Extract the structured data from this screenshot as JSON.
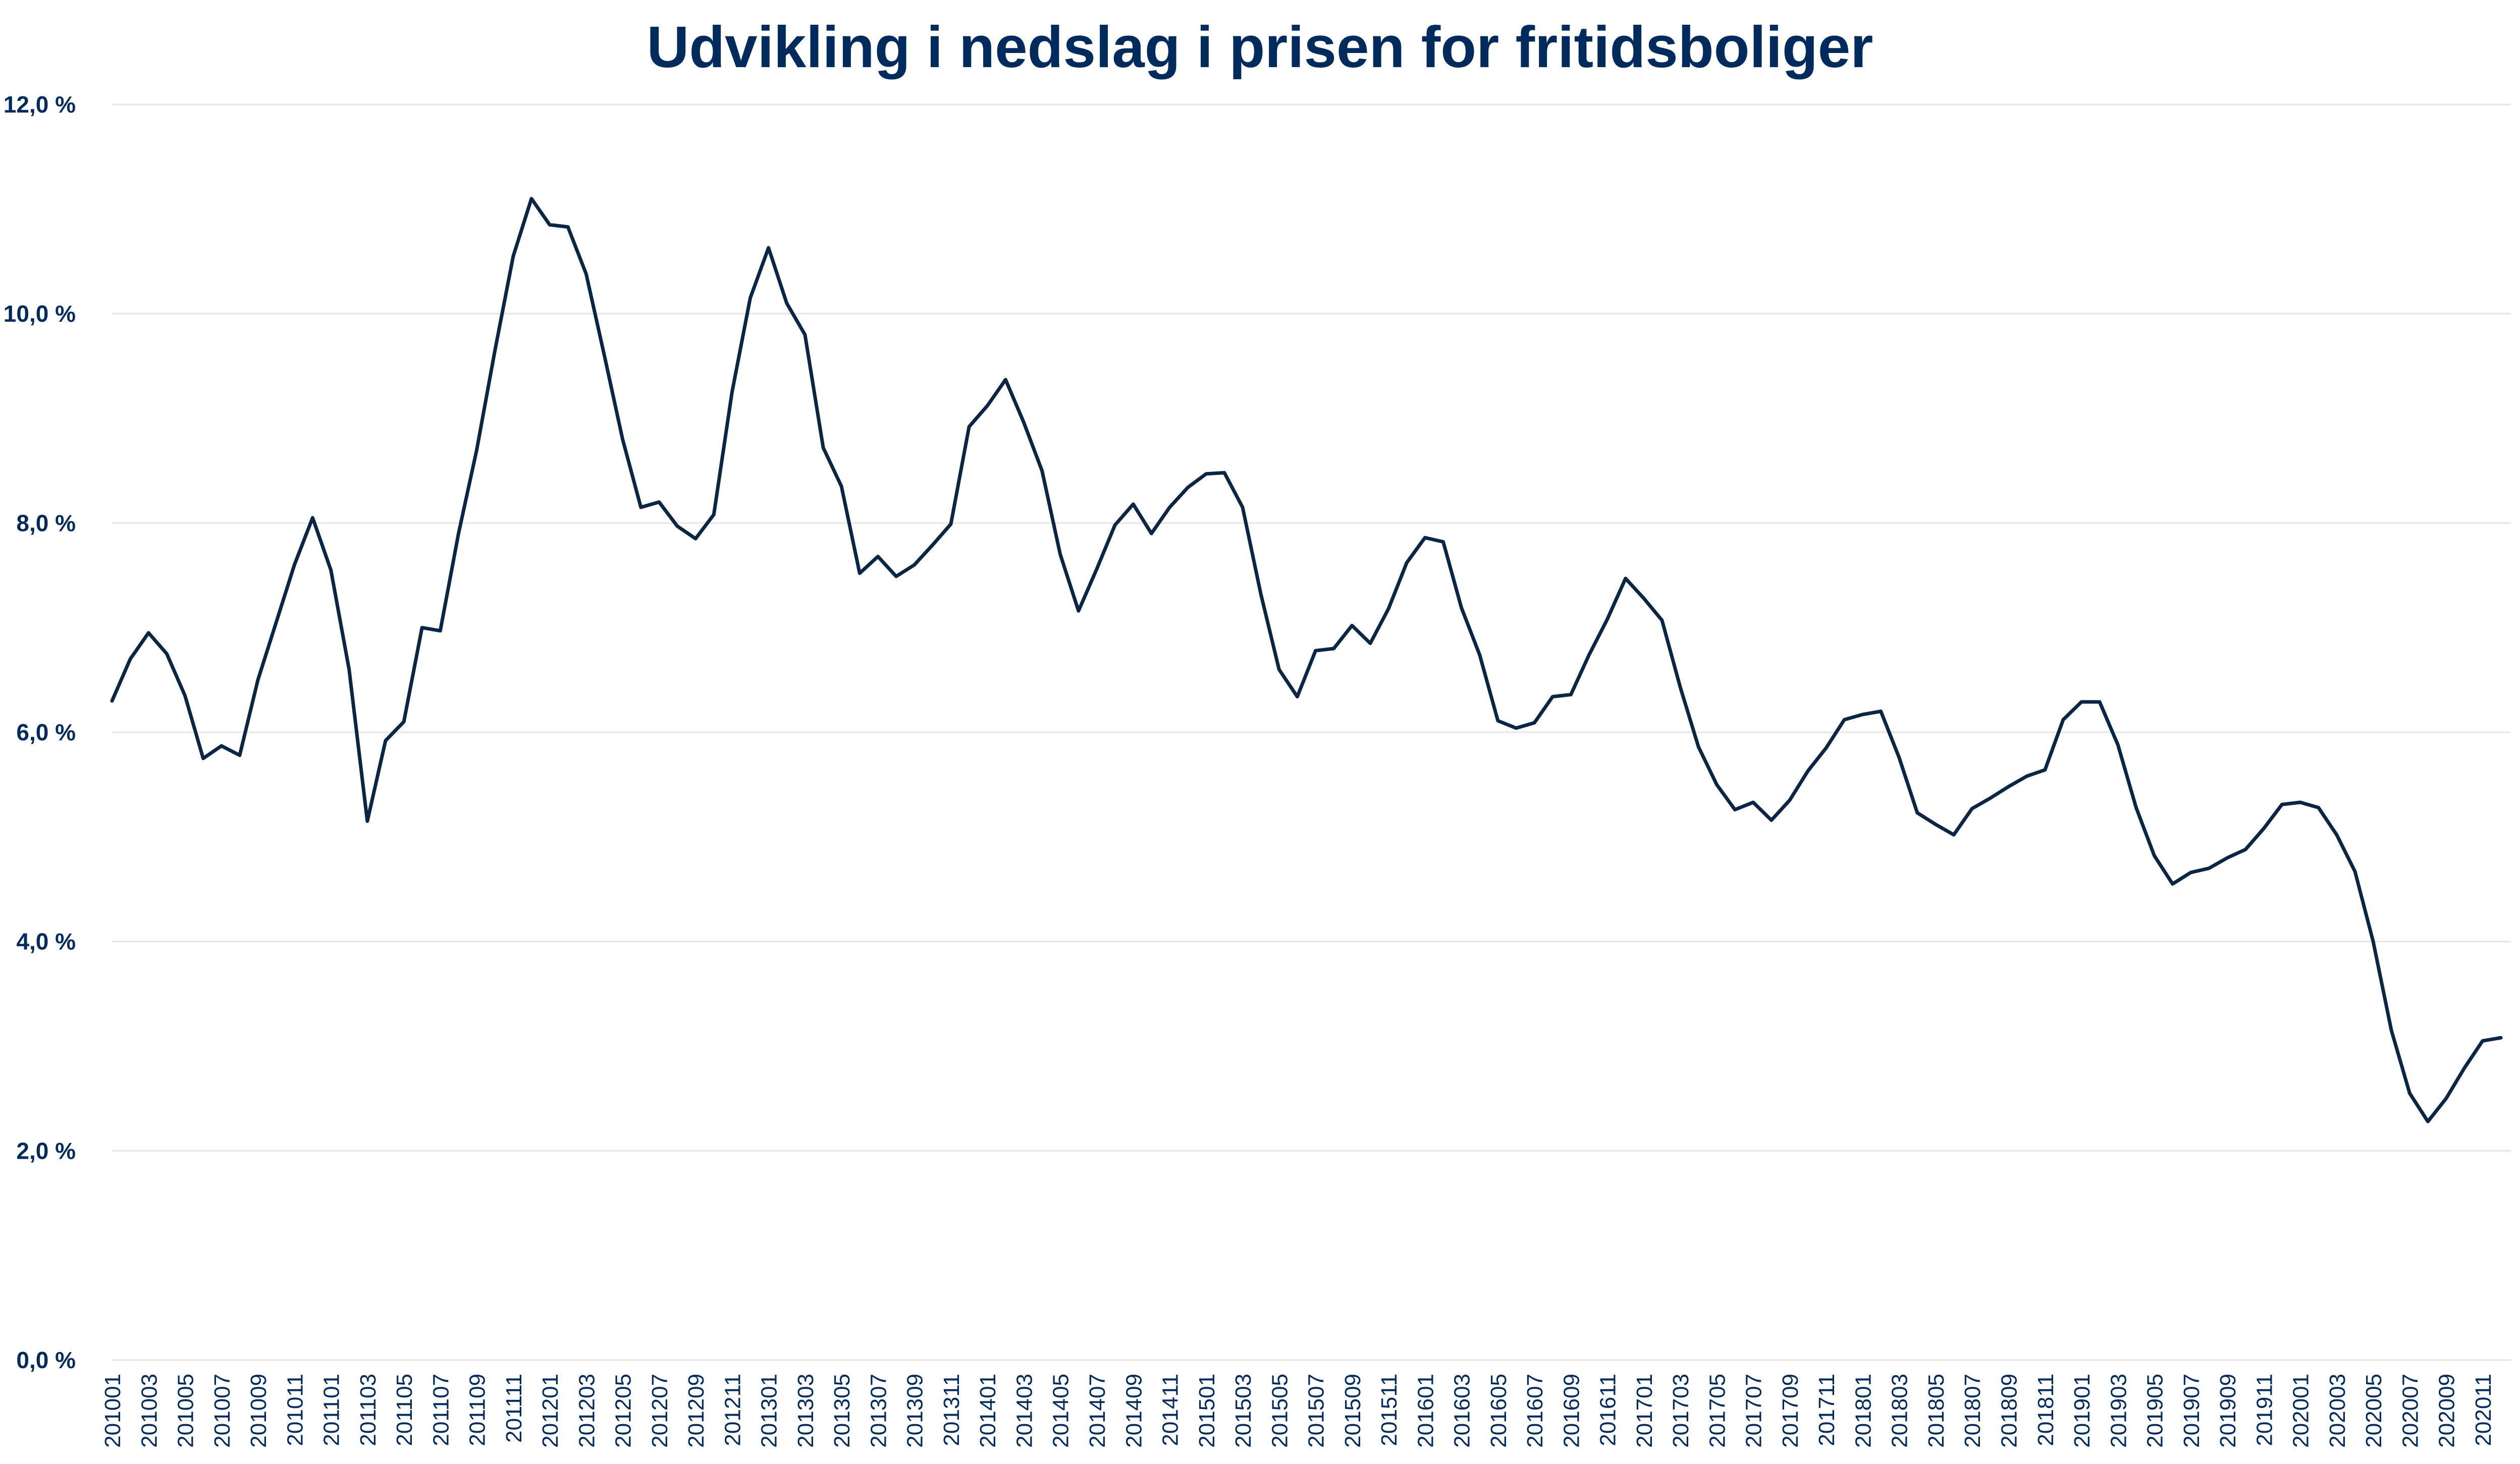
{
  "colors": {
    "line": "#0B2545",
    "text": "#002B5C",
    "grid": "#E6E6E6"
  },
  "chart_data": {
    "type": "line",
    "title": "Udvikling i nedslag i prisen for fritidsboliger",
    "xlabel": "",
    "ylabel": "",
    "ylim": [
      0,
      12
    ],
    "grid": true,
    "legend": "none",
    "yticks": [
      0,
      2,
      4,
      6,
      8,
      10,
      12
    ],
    "ytick_labels": [
      "0,0 %",
      "2,0 %",
      "4,0 %",
      "6,0 %",
      "8,0 %",
      "10,0 %",
      "12,0 %"
    ],
    "x": [
      "201001",
      "201002",
      "201003",
      "201004",
      "201005",
      "201006",
      "201007",
      "201008",
      "201009",
      "201010",
      "201011",
      "201012",
      "201101",
      "201102",
      "201103",
      "201104",
      "201105",
      "201106",
      "201107",
      "201108",
      "201109",
      "201110",
      "201111",
      "201112",
      "201201",
      "201202",
      "201203",
      "201204",
      "201205",
      "201206",
      "201207",
      "201208",
      "201209",
      "201210",
      "201211",
      "201212",
      "201301",
      "201302",
      "201303",
      "201304",
      "201305",
      "201306",
      "201307",
      "201308",
      "201309",
      "201310",
      "201311",
      "201312",
      "201401",
      "201402",
      "201403",
      "201404",
      "201405",
      "201406",
      "201407",
      "201408",
      "201409",
      "201410",
      "201411",
      "201412",
      "201501",
      "201502",
      "201503",
      "201504",
      "201505",
      "201506",
      "201507",
      "201508",
      "201509",
      "201510",
      "201511",
      "201512",
      "201601",
      "201602",
      "201603",
      "201604",
      "201605",
      "201606",
      "201607",
      "201608",
      "201609",
      "201610",
      "201611",
      "201612",
      "201701",
      "201702",
      "201703",
      "201704",
      "201705",
      "201706",
      "201707",
      "201708",
      "201709",
      "201710",
      "201711",
      "201712",
      "201801",
      "201802",
      "201803",
      "201804",
      "201805",
      "201806",
      "201807",
      "201808",
      "201809",
      "201810",
      "201811",
      "201812",
      "201901",
      "201902",
      "201903",
      "201904",
      "201905",
      "201906",
      "201907",
      "201908",
      "201909",
      "201910",
      "201911",
      "201912",
      "202001",
      "202002",
      "202003",
      "202004",
      "202005",
      "202006",
      "202007",
      "202008",
      "202009",
      "202010",
      "202011",
      "202012"
    ],
    "x_tick_labels": [
      "201001",
      "201003",
      "201005",
      "201007",
      "201009",
      "201011",
      "201101",
      "201103",
      "201105",
      "201107",
      "201109",
      "201111",
      "201201",
      "201203",
      "201205",
      "201207",
      "201209",
      "201211",
      "201301",
      "201303",
      "201305",
      "201307",
      "201309",
      "201311",
      "201401",
      "201403",
      "201405",
      "201407",
      "201409",
      "201411",
      "201501",
      "201503",
      "201505",
      "201507",
      "201509",
      "201511",
      "201601",
      "201603",
      "201605",
      "201607",
      "201609",
      "201611",
      "201701",
      "201703",
      "201705",
      "201707",
      "201709",
      "201711",
      "201801",
      "201803",
      "201805",
      "201807",
      "201809",
      "201811",
      "201901",
      "201903",
      "201905",
      "201907",
      "201909",
      "201911",
      "202001",
      "202003",
      "202005",
      "202007",
      "202009",
      "202011"
    ],
    "series": [
      {
        "values": [
          6.3,
          6.7,
          6.95,
          6.75,
          6.35,
          5.75,
          5.87,
          5.78,
          6.5,
          7.05,
          7.6,
          8.05,
          7.55,
          6.6,
          5.15,
          5.92,
          6.1,
          7.0,
          6.97,
          7.9,
          8.7,
          9.65,
          10.55,
          11.1,
          10.85,
          10.83,
          10.38,
          9.6,
          8.8,
          8.15,
          8.2,
          7.97,
          7.85,
          8.08,
          9.25,
          10.15,
          10.63,
          10.1,
          9.8,
          8.72,
          8.35,
          7.52,
          7.68,
          7.49,
          7.6,
          7.79,
          7.99,
          8.92,
          9.12,
          9.37,
          8.96,
          8.5,
          7.7,
          7.16,
          7.56,
          7.98,
          8.18,
          7.9,
          8.15,
          8.34,
          8.47,
          8.48,
          8.15,
          7.32,
          6.6,
          6.34,
          6.78,
          6.8,
          7.02,
          6.85,
          7.18,
          7.62,
          7.86,
          7.82,
          7.19,
          6.74,
          6.11,
          6.04,
          6.09,
          6.34,
          6.36,
          6.74,
          7.08,
          7.47,
          7.28,
          7.07,
          6.43,
          5.86,
          5.5,
          5.26,
          5.33,
          5.16,
          5.35,
          5.63,
          5.85,
          6.12,
          6.17,
          6.2,
          5.76,
          5.23,
          5.12,
          5.02,
          5.27,
          5.37,
          5.48,
          5.58,
          5.64,
          6.12,
          6.29,
          6.29,
          5.88,
          5.28,
          4.82,
          4.55,
          4.66,
          4.7,
          4.8,
          4.88,
          5.08,
          5.31,
          5.33,
          5.28,
          5.02,
          4.67,
          4.0,
          3.15,
          2.55,
          2.28,
          2.5,
          2.79,
          3.05,
          3.08
        ]
      }
    ]
  }
}
